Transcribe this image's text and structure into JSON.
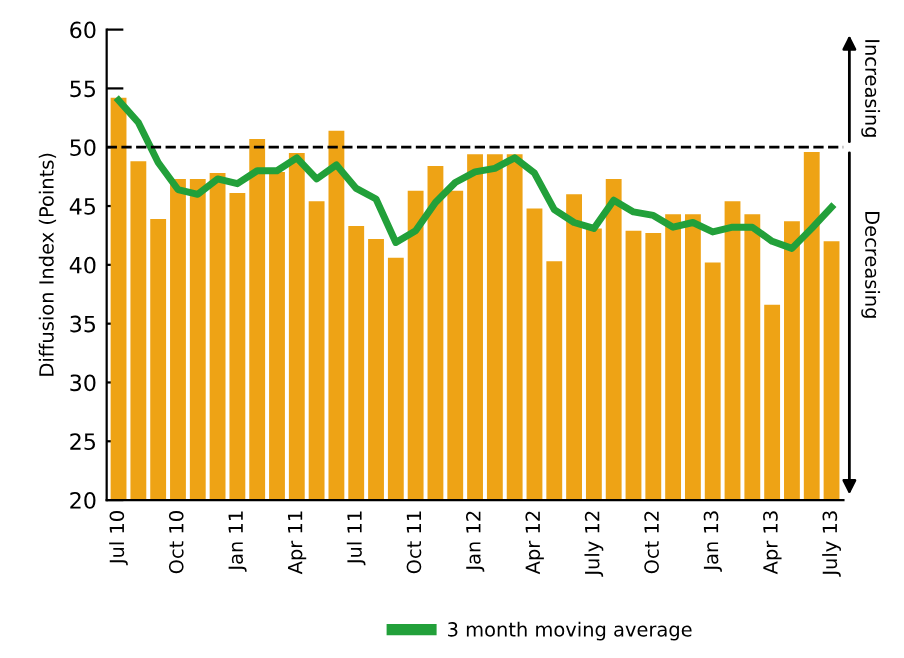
{
  "chart_data": {
    "type": "bar",
    "ylabel": "Diffusion Index (Points)",
    "categories": [
      "Jul 10",
      null,
      null,
      "Oct 10",
      null,
      null,
      "Jan 11",
      null,
      null,
      "Apr 11",
      null,
      null,
      "Jul 11",
      null,
      null,
      "Oct 11",
      null,
      null,
      "Jan 12",
      null,
      null,
      "Apr 12",
      null,
      null,
      "July 12",
      null,
      null,
      "Oct 12",
      null,
      null,
      "Jan 13",
      null,
      null,
      "Apr 13",
      null,
      null,
      "July 13"
    ],
    "series": [
      {
        "color": "#eea315",
        "values": [
          54.2,
          48.8,
          43.9,
          47.3,
          47.3,
          47.8,
          46.1,
          50.7,
          47.9,
          49.5,
          45.4,
          51.4,
          43.3,
          42.2,
          40.6,
          46.3,
          48.4,
          46.3,
          49.4,
          49.4,
          49.4,
          44.8,
          40.3,
          46.0,
          43.1,
          47.3,
          42.9,
          42.7,
          44.3,
          44.3,
          40.2,
          45.4,
          44.3,
          36.6,
          43.7,
          49.6,
          42.0
        ]
      },
      {
        "type": "line",
        "name": "3 month moving average",
        "color": "#22a03a",
        "values": [
          54.0,
          52.1,
          48.7,
          46.4,
          46.0,
          47.3,
          46.9,
          48.0,
          48.0,
          49.1,
          47.3,
          48.5,
          46.5,
          45.6,
          41.9,
          42.9,
          45.3,
          47.0,
          47.9,
          48.2,
          49.1,
          47.8,
          44.7,
          43.6,
          43.1,
          45.5,
          44.5,
          44.2,
          43.2,
          43.6,
          42.8,
          43.2,
          43.2,
          42.0,
          41.4,
          43.1,
          44.9
        ]
      }
    ],
    "ylim": [
      20,
      60
    ],
    "yticks": [
      20,
      25,
      30,
      35,
      40,
      45,
      50,
      55,
      60
    ],
    "ref_lines": [
      {
        "axis": "y",
        "value": 50,
        "color": "#000000",
        "line_style": "dashed"
      }
    ],
    "annotations": [
      "Increasing",
      "Decreasing"
    ],
    "grid": false,
    "legend": "bottom",
    "marker": "none",
    "line_style": "solid"
  }
}
